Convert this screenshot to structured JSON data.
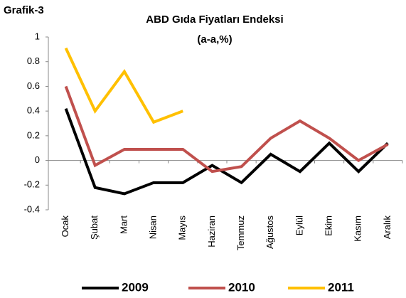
{
  "chart_data": {
    "type": "line",
    "label": "Grafik-3",
    "title": "ABD Gıda Fiyatları Endeksi",
    "subtitle": "(a-a,%)",
    "categories": [
      "Ocak",
      "Şubat",
      "Mart",
      "Nisan",
      "Mayıs",
      "Haziran",
      "Temmuz",
      "Ağustos",
      "Eylül",
      "Ekim",
      "Kasım",
      "Aralık"
    ],
    "series": [
      {
        "name": "2009",
        "color": "#000000",
        "values": [
          0.42,
          -0.22,
          -0.27,
          -0.18,
          -0.18,
          -0.04,
          -0.18,
          0.05,
          -0.09,
          0.14,
          -0.09,
          0.14
        ]
      },
      {
        "name": "2010",
        "color": "#c0504d",
        "values": [
          0.6,
          -0.04,
          0.09,
          0.09,
          0.09,
          -0.09,
          -0.05,
          0.18,
          0.32,
          0.18,
          0.0,
          0.13
        ]
      },
      {
        "name": "2011",
        "color": "#ffc000",
        "values": [
          0.91,
          0.4,
          0.72,
          0.31,
          0.4,
          null,
          null,
          null,
          null,
          null,
          null,
          null
        ]
      }
    ],
    "ylim": [
      -0.4,
      1
    ],
    "yticks": [
      1,
      0.8,
      0.6,
      0.4,
      0.2,
      0,
      -0.2,
      -0.4
    ],
    "legend": "bottom"
  }
}
